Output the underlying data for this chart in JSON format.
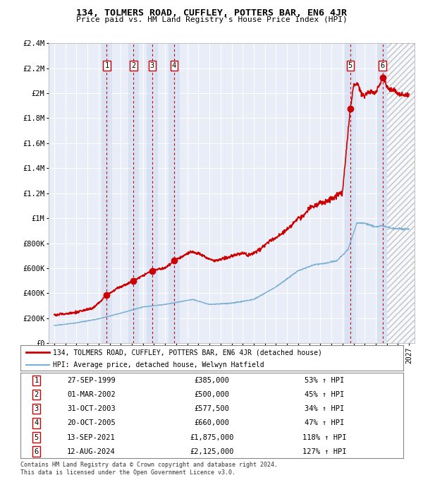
{
  "title": "134, TOLMERS ROAD, CUFFLEY, POTTERS BAR, EN6 4JR",
  "subtitle": "Price paid vs. HM Land Registry's House Price Index (HPI)",
  "footer1": "Contains HM Land Registry data © Crown copyright and database right 2024.",
  "footer2": "This data is licensed under the Open Government Licence v3.0.",
  "legend_line1": "134, TOLMERS ROAD, CUFFLEY, POTTERS BAR, EN6 4JR (detached house)",
  "legend_line2": "HPI: Average price, detached house, Welwyn Hatfield",
  "transactions": [
    {
      "label": "1",
      "date_str": "27-SEP-1999",
      "year": 1999.74,
      "price": 385000
    },
    {
      "label": "2",
      "date_str": "01-MAR-2002",
      "year": 2002.16,
      "price": 500000
    },
    {
      "label": "3",
      "date_str": "31-OCT-2003",
      "year": 2003.83,
      "price": 577500
    },
    {
      "label": "4",
      "date_str": "20-OCT-2005",
      "year": 2005.8,
      "price": 660000
    },
    {
      "label": "5",
      "date_str": "13-SEP-2021",
      "year": 2021.7,
      "price": 1875000
    },
    {
      "label": "6",
      "date_str": "12-AUG-2024",
      "year": 2024.61,
      "price": 2125000
    }
  ],
  "price_labels": [
    "£0",
    "£200K",
    "£400K",
    "£600K",
    "£800K",
    "£1M",
    "£1.2M",
    "£1.4M",
    "£1.6M",
    "£1.8M",
    "£2M",
    "£2.2M",
    "£2.4M"
  ],
  "price_values": [
    0,
    200000,
    400000,
    600000,
    800000,
    1000000,
    1200000,
    1400000,
    1600000,
    1800000,
    2000000,
    2200000,
    2400000
  ],
  "ylim": [
    0,
    2400000
  ],
  "xlim_start": 1994.5,
  "xlim_end": 2027.5,
  "plot_bg": "#e8edf8",
  "grid_color": "#ffffff",
  "hpi_color": "#7bafd4",
  "price_color": "#cc0000",
  "shade_color": "#d0dcf0",
  "dashed_color": "#cc0000",
  "table_rows": [
    [
      "1",
      "27-SEP-1999",
      "£385,000",
      "53% ↑ HPI"
    ],
    [
      "2",
      "01-MAR-2002",
      "£500,000",
      "45% ↑ HPI"
    ],
    [
      "3",
      "31-OCT-2003",
      "£577,500",
      "34% ↑ HPI"
    ],
    [
      "4",
      "20-OCT-2005",
      "£660,000",
      "47% ↑ HPI"
    ],
    [
      "5",
      "13-SEP-2021",
      "£1,875,000",
      "118% ↑ HPI"
    ],
    [
      "6",
      "12-AUG-2024",
      "£2,125,000",
      "127% ↑ HPI"
    ]
  ]
}
